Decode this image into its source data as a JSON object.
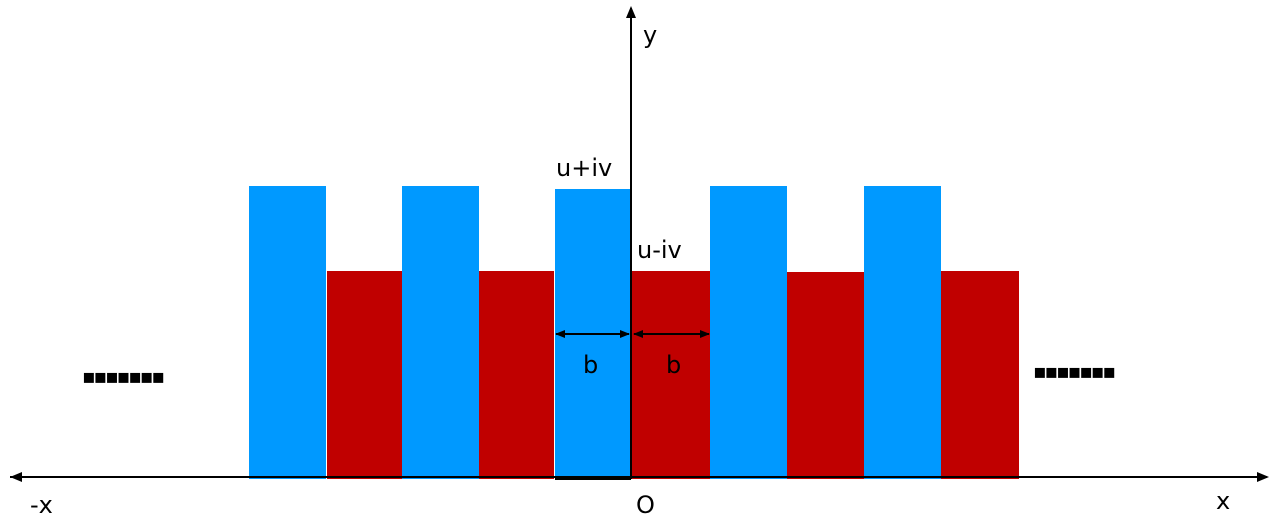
{
  "labels": {
    "y_axis": "y",
    "x_axis": "x",
    "neg_x_axis": "-x",
    "origin": "O",
    "upper_region": "u+iv",
    "lower_region": "u-iv",
    "width_left": "b",
    "width_right": "b",
    "ellipsis_left": "▪▪▪▪▪▪▪",
    "ellipsis_right": "▪▪▪▪▪▪▪"
  },
  "colors": {
    "upper": "#0099ff",
    "lower": "#c00000",
    "axis": "#000000"
  }
}
